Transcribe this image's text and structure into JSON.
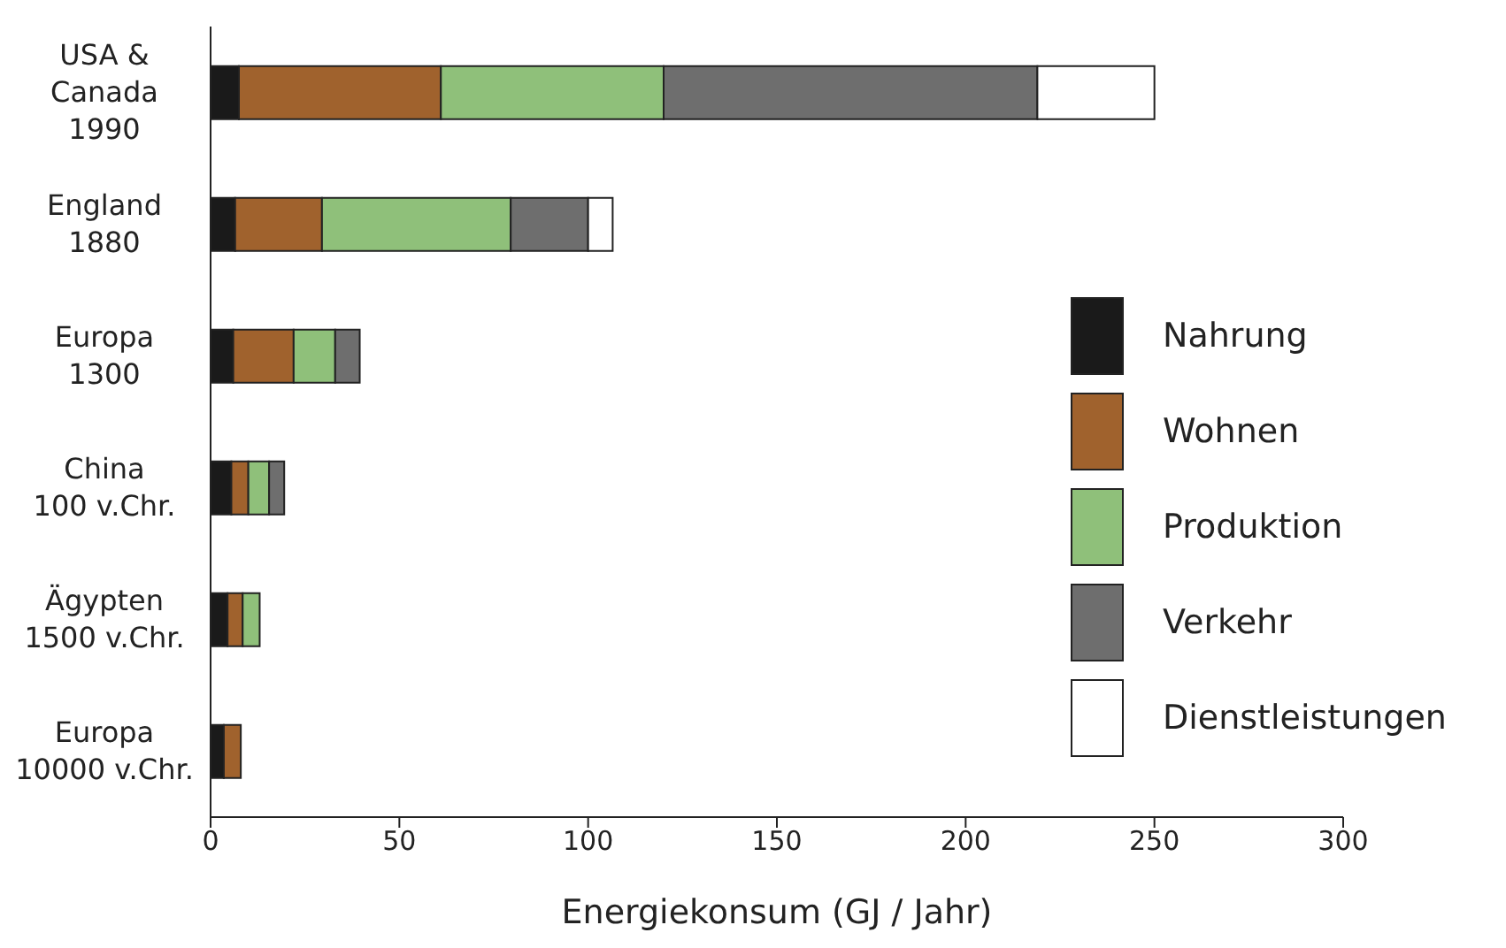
{
  "chart_data": {
    "type": "bar",
    "orientation": "horizontal",
    "stacked": true,
    "xlabel": "Energiekonsum (GJ / Jahr)",
    "categories": [
      "USA &\nCanada\n1990",
      "England\n1880",
      "Europa\n1300",
      "China\n100  v.Chr.",
      "Ägypten\n1500 v.Chr.",
      "Europa\n10000 v.Chr."
    ],
    "series": [
      {
        "name": "Nahrung",
        "color": "#1a1a1a",
        "values": [
          7.5,
          6.5,
          6,
          5.5,
          4.5,
          3.5
        ]
      },
      {
        "name": "Wohnen",
        "color": "#a0622d",
        "values": [
          53.5,
          23,
          16,
          4.5,
          4,
          4.5
        ]
      },
      {
        "name": "Produktion",
        "color": "#8fc07a",
        "values": [
          59,
          50,
          11,
          5.5,
          4.5,
          null
        ]
      },
      {
        "name": "Verkehr",
        "color": "#6e6e6e",
        "values": [
          99,
          20.5,
          6.5,
          4,
          null,
          null
        ]
      },
      {
        "name": "Dienstleistungen",
        "color": "#ffffff",
        "values": [
          31,
          6.5,
          null,
          null,
          null,
          null
        ]
      }
    ],
    "xlim": [
      0,
      300
    ],
    "xticks": [
      0,
      50,
      100,
      150,
      200,
      250,
      300
    ],
    "legend": "right"
  }
}
